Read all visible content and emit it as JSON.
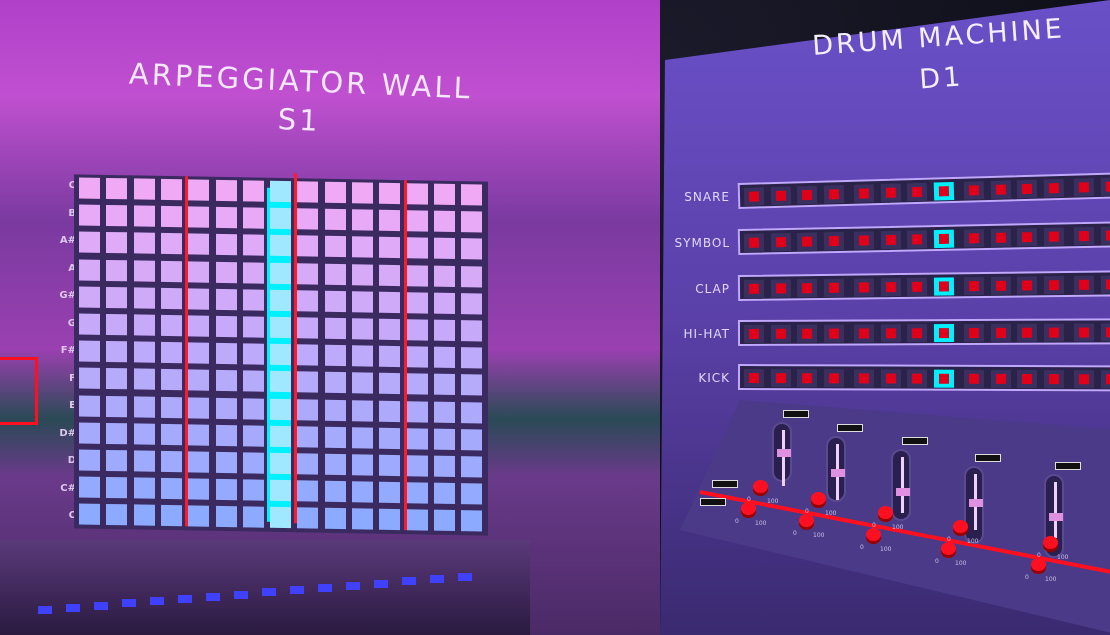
{
  "arpeggiator": {
    "title_line1": "ARPEGGIATOR WALL",
    "title_line2": "S1",
    "notes": [
      "C",
      "B",
      "A#",
      "A",
      "G#",
      "G",
      "F#",
      "F",
      "E",
      "D#",
      "D",
      "C#",
      "C"
    ],
    "columns": 15,
    "active_column": 7,
    "accent": "#00f0ff",
    "marker_color": "#ff1a2a"
  },
  "drum_machine": {
    "title_line1": "DRUM MACHINE",
    "title_line2": "D1",
    "tracks": [
      {
        "name": "SNARE",
        "active_step": 7
      },
      {
        "name": "SYMBOL",
        "active_step": 7
      },
      {
        "name": "CLAP",
        "active_step": 7
      },
      {
        "name": "HI-HAT",
        "active_step": 7
      },
      {
        "name": "KICK",
        "active_step": 7
      }
    ],
    "visible_steps": 14,
    "led_color": "#e0001a",
    "mixer": {
      "fader_levels": [
        0.5,
        0.45,
        0.4,
        0.55,
        0.5
      ],
      "knob_min": "0",
      "knob_max": "100"
    }
  }
}
